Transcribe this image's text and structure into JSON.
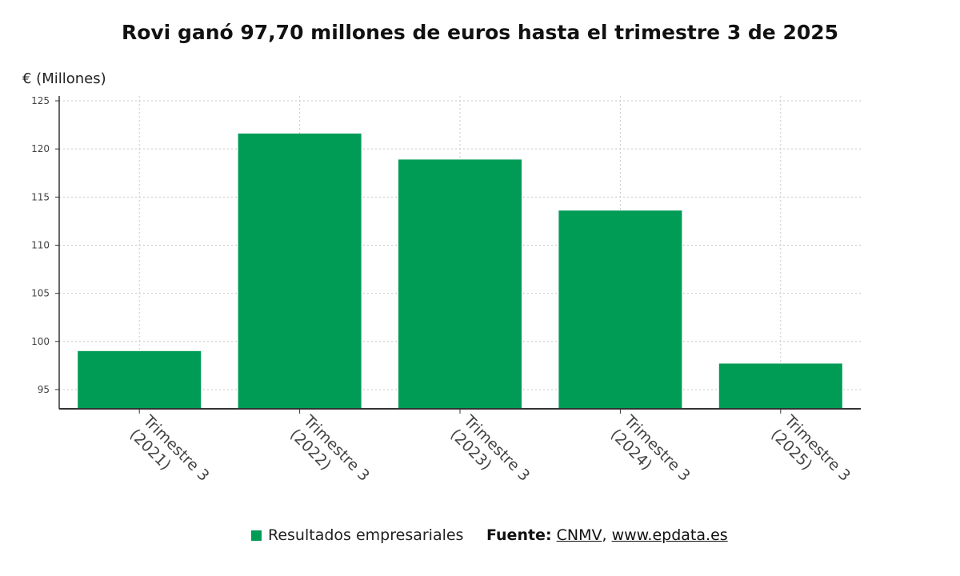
{
  "chart_data": {
    "type": "bar",
    "title": "Rovi ganó 97,70 millones de euros hasta el trimestre 3 de 2025",
    "ylabel": "€ (Millones)",
    "xlabel": "",
    "categories": [
      [
        "Trimestre 3",
        "(2021)"
      ],
      [
        "Trimestre 3",
        "(2022)"
      ],
      [
        "Trimestre 3",
        "(2023)"
      ],
      [
        "Trimestre 3",
        "(2024)"
      ],
      [
        "Trimestre 3",
        "(2025)"
      ]
    ],
    "series": [
      {
        "name": "Resultados empresariales",
        "values": [
          99.0,
          121.6,
          118.9,
          113.6,
          97.7
        ]
      }
    ],
    "ylim": [
      93,
      125.5
    ],
    "yticks": [
      95,
      100,
      105,
      110,
      115,
      120,
      125
    ],
    "grid": true,
    "legend_position": "bottom"
  },
  "colors": {
    "bar": "#009c56",
    "grid": "#c8c8c8",
    "axis": "#333333"
  },
  "footer": {
    "legend_label": "Resultados empresariales",
    "source_label": "Fuente:",
    "source_name": "CNMV",
    "separator": ",",
    "source_site": "www.epdata.es"
  }
}
